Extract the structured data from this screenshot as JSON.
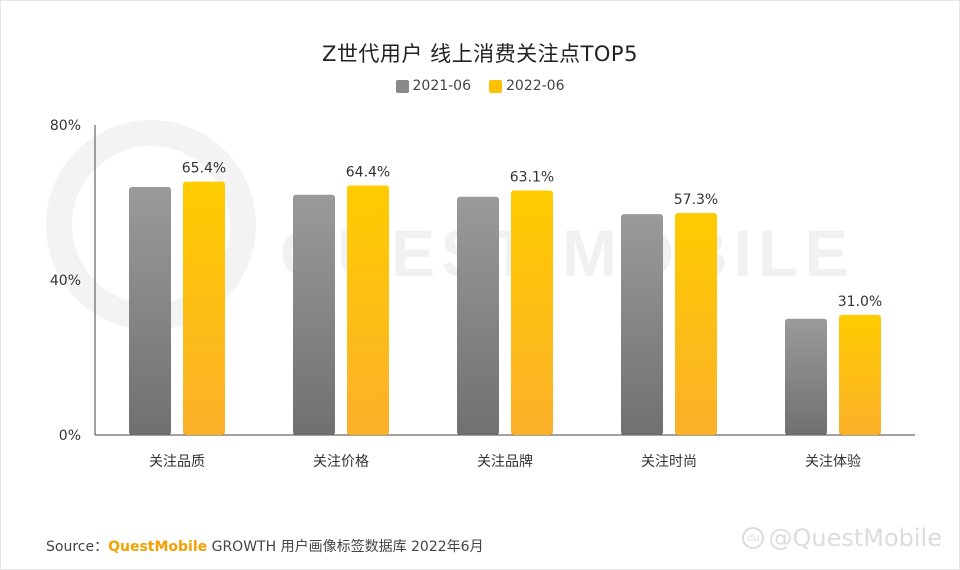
{
  "chart_data": {
    "type": "bar",
    "title": "Z世代用户 线上消费关注点TOP5",
    "categories": [
      "关注品质",
      "关注价格",
      "关注品牌",
      "关注时尚",
      "关注体验"
    ],
    "series": [
      {
        "name": "2021-06",
        "values": [
          64.0,
          62.0,
          61.5,
          57.0,
          30.0
        ],
        "color": "#8a8a8a",
        "labels": [
          "",
          "",
          "",
          "",
          ""
        ]
      },
      {
        "name": "2022-06",
        "values": [
          65.4,
          64.4,
          63.1,
          57.3,
          31.0
        ],
        "color": "#ffc107",
        "labels": [
          "65.4%",
          "64.4%",
          "63.1%",
          "57.3%",
          "31.0%"
        ]
      }
    ],
    "y_ticks": [
      "0%",
      "40%",
      "80%"
    ],
    "y_tick_values": [
      0,
      40,
      80
    ],
    "ylim": [
      0,
      80
    ],
    "grid": false,
    "legend_position": "top-center"
  },
  "source": {
    "prefix": "Source：",
    "brand": "QuestMobile",
    "text": "GROWTH 用户画像标签数据库 2022年6月"
  },
  "watermark": {
    "text": "@QuestMobile",
    "logo": "du",
    "background_text": "QUEST MOBILE"
  }
}
